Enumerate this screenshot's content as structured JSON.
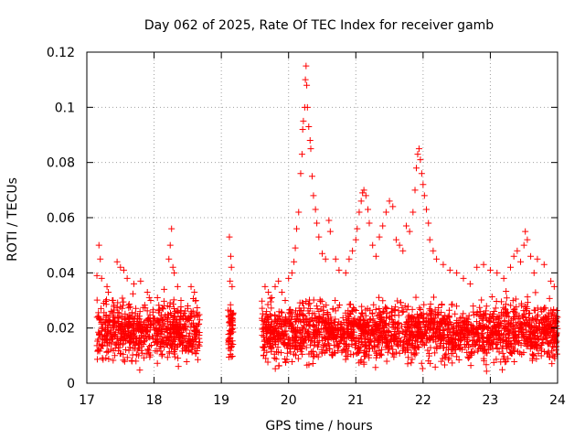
{
  "chart_data": {
    "type": "scatter",
    "title": "Day 062 of 2025, Rate Of TEC Index for receiver gamb",
    "xlabel": "GPS time / hours",
    "ylabel": "ROTI / TECUs",
    "xlim": [
      17,
      24
    ],
    "ylim": [
      0,
      0.12
    ],
    "x_ticks": [
      17,
      18,
      19,
      20,
      21,
      22,
      23,
      24
    ],
    "y_ticks": [
      0,
      0.02,
      0.04,
      0.06,
      0.08,
      0.1,
      0.12
    ],
    "x_tick_labels": [
      "17",
      "18",
      "19",
      "20",
      "21",
      "22",
      "23",
      "24"
    ],
    "y_tick_labels": [
      "0",
      "0.02",
      "0.04",
      "0.06",
      "0.08",
      "0.1",
      "0.12"
    ],
    "grid": true,
    "marker": "+",
    "color": "#ff0000",
    "series": [
      {
        "name": "ROTI",
        "points": [
          [
            17.18,
            0.05
          ],
          [
            17.2,
            0.045
          ],
          [
            17.22,
            0.038
          ],
          [
            17.15,
            0.039
          ],
          [
            17.3,
            0.035
          ],
          [
            17.32,
            0.033
          ],
          [
            17.38,
            0.03
          ],
          [
            17.45,
            0.044
          ],
          [
            17.5,
            0.042
          ],
          [
            17.55,
            0.041
          ],
          [
            17.6,
            0.038
          ],
          [
            17.7,
            0.036
          ],
          [
            17.8,
            0.037
          ],
          [
            17.9,
            0.033
          ],
          [
            17.95,
            0.03
          ],
          [
            18.05,
            0.031
          ],
          [
            18.15,
            0.034
          ],
          [
            18.2,
            0.028
          ],
          [
            18.22,
            0.045
          ],
          [
            18.24,
            0.05
          ],
          [
            18.26,
            0.056
          ],
          [
            18.28,
            0.042
          ],
          [
            18.3,
            0.04
          ],
          [
            18.35,
            0.035
          ],
          [
            18.4,
            0.03
          ],
          [
            18.5,
            0.028
          ],
          [
            18.55,
            0.035
          ],
          [
            18.6,
            0.033
          ],
          [
            18.62,
            0.03
          ],
          [
            19.12,
            0.053
          ],
          [
            19.14,
            0.046
          ],
          [
            19.15,
            0.042
          ],
          [
            19.13,
            0.037
          ],
          [
            19.16,
            0.035
          ],
          [
            19.65,
            0.035
          ],
          [
            19.7,
            0.033
          ],
          [
            19.75,
            0.031
          ],
          [
            19.8,
            0.035
          ],
          [
            19.85,
            0.037
          ],
          [
            19.9,
            0.033
          ],
          [
            19.95,
            0.03
          ],
          [
            20.0,
            0.038
          ],
          [
            20.05,
            0.04
          ],
          [
            20.08,
            0.044
          ],
          [
            20.1,
            0.049
          ],
          [
            20.12,
            0.056
          ],
          [
            20.15,
            0.062
          ],
          [
            20.18,
            0.076
          ],
          [
            20.2,
            0.083
          ],
          [
            20.21,
            0.092
          ],
          [
            20.22,
            0.095
          ],
          [
            20.24,
            0.1
          ],
          [
            20.25,
            0.11
          ],
          [
            20.26,
            0.115
          ],
          [
            20.27,
            0.108
          ],
          [
            20.28,
            0.1
          ],
          [
            20.3,
            0.093
          ],
          [
            20.32,
            0.088
          ],
          [
            20.33,
            0.085
          ],
          [
            20.35,
            0.075
          ],
          [
            20.37,
            0.068
          ],
          [
            20.4,
            0.063
          ],
          [
            20.42,
            0.058
          ],
          [
            20.45,
            0.053
          ],
          [
            20.5,
            0.047
          ],
          [
            20.55,
            0.045
          ],
          [
            20.6,
            0.059
          ],
          [
            20.62,
            0.055
          ],
          [
            20.7,
            0.045
          ],
          [
            20.75,
            0.041
          ],
          [
            20.85,
            0.04
          ],
          [
            20.9,
            0.045
          ],
          [
            20.95,
            0.048
          ],
          [
            21.0,
            0.052
          ],
          [
            21.02,
            0.056
          ],
          [
            21.05,
            0.062
          ],
          [
            21.08,
            0.066
          ],
          [
            21.1,
            0.069
          ],
          [
            21.12,
            0.07
          ],
          [
            21.15,
            0.068
          ],
          [
            21.18,
            0.063
          ],
          [
            21.2,
            0.058
          ],
          [
            21.25,
            0.05
          ],
          [
            21.3,
            0.046
          ],
          [
            21.35,
            0.053
          ],
          [
            21.4,
            0.057
          ],
          [
            21.45,
            0.062
          ],
          [
            21.5,
            0.066
          ],
          [
            21.55,
            0.064
          ],
          [
            21.6,
            0.052
          ],
          [
            21.65,
            0.05
          ],
          [
            21.7,
            0.048
          ],
          [
            21.75,
            0.057
          ],
          [
            21.8,
            0.055
          ],
          [
            21.85,
            0.062
          ],
          [
            21.88,
            0.07
          ],
          [
            21.9,
            0.078
          ],
          [
            21.92,
            0.083
          ],
          [
            21.94,
            0.085
          ],
          [
            21.96,
            0.081
          ],
          [
            21.98,
            0.076
          ],
          [
            22.0,
            0.072
          ],
          [
            22.02,
            0.068
          ],
          [
            22.05,
            0.063
          ],
          [
            22.08,
            0.058
          ],
          [
            22.1,
            0.052
          ],
          [
            22.15,
            0.048
          ],
          [
            22.2,
            0.045
          ],
          [
            22.3,
            0.043
          ],
          [
            22.4,
            0.041
          ],
          [
            22.5,
            0.04
          ],
          [
            22.6,
            0.038
          ],
          [
            22.7,
            0.036
          ],
          [
            22.8,
            0.042
          ],
          [
            22.9,
            0.043
          ],
          [
            23.0,
            0.041
          ],
          [
            23.1,
            0.04
          ],
          [
            23.2,
            0.038
          ],
          [
            23.3,
            0.042
          ],
          [
            23.35,
            0.046
          ],
          [
            23.4,
            0.048
          ],
          [
            23.45,
            0.044
          ],
          [
            23.5,
            0.05
          ],
          [
            23.52,
            0.055
          ],
          [
            23.55,
            0.052
          ],
          [
            23.6,
            0.046
          ],
          [
            23.65,
            0.04
          ],
          [
            23.7,
            0.045
          ],
          [
            23.8,
            0.043
          ],
          [
            23.9,
            0.037
          ],
          [
            23.95,
            0.035
          ]
        ],
        "background_cloud": {
          "segments": [
            [
              17.15,
              18.68
            ],
            [
              19.1,
              19.18
            ],
            [
              19.6,
              24.0
            ]
          ],
          "typical_range": [
            0.005,
            0.032
          ],
          "points_per_hour": 450,
          "random_seed": 20250062
        }
      }
    ]
  }
}
